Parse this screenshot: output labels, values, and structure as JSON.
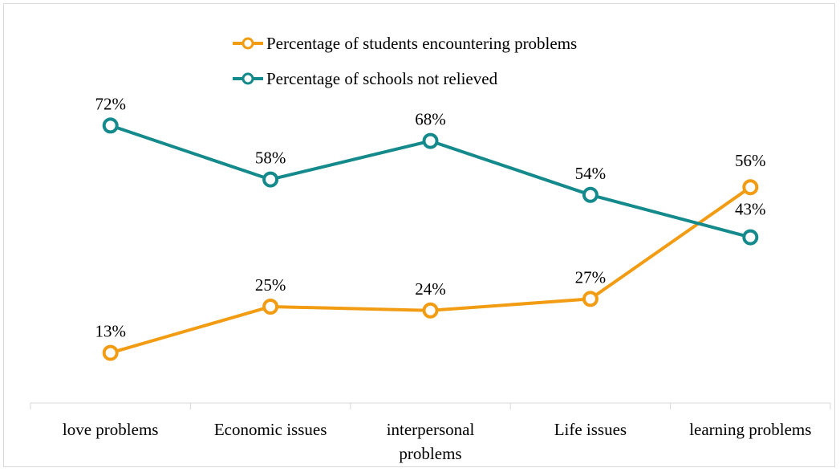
{
  "chart_data": {
    "type": "line",
    "title": "",
    "xlabel": "",
    "ylabel": "",
    "categories": [
      "love problems",
      "Economic issues",
      "interpersonal problems",
      "Life issues",
      "learning problems"
    ],
    "category_lines": [
      [
        "love problems"
      ],
      [
        "Economic issues"
      ],
      [
        "interpersonal",
        "problems"
      ],
      [
        "Life issues"
      ],
      [
        "learning problems"
      ]
    ],
    "ylim": [
      0,
      100
    ],
    "grid": false,
    "legend_position": "top-center",
    "series": [
      {
        "name": "Percentage of students encountering problems",
        "color": "#F29C13",
        "values": [
          13,
          25,
          24,
          27,
          56
        ],
        "labels": [
          "13%",
          "25%",
          "24%",
          "27%",
          "56%"
        ]
      },
      {
        "name": "Percentage of schools not relieved",
        "color": "#158A8C",
        "values": [
          72,
          58,
          68,
          54,
          43
        ],
        "labels": [
          "72%",
          "58%",
          "68%",
          "54%",
          "43%"
        ]
      }
    ]
  }
}
